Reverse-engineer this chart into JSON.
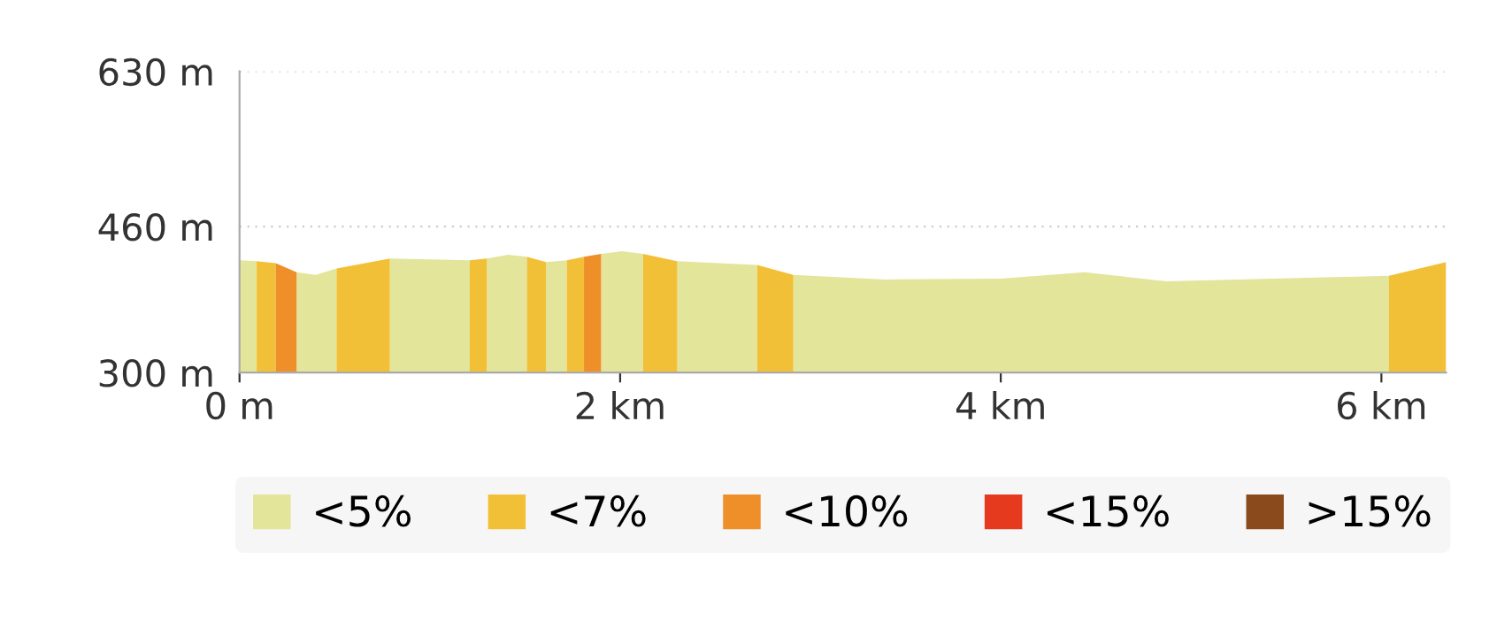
{
  "chart_data": {
    "type": "area",
    "xlim": [
      0,
      6.34
    ],
    "ylim": [
      300,
      630
    ],
    "xticks": [
      {
        "value": 0,
        "label": "0 m"
      },
      {
        "value": 2,
        "label": "2 km"
      },
      {
        "value": 4,
        "label": "4 km"
      },
      {
        "value": 6,
        "label": "6 km"
      }
    ],
    "yticks": [
      {
        "value": 300,
        "label": "300 m"
      },
      {
        "value": 460,
        "label": "460 m"
      },
      {
        "value": 630,
        "label": "630 m"
      }
    ],
    "grid": "y",
    "legend": "bottom",
    "series": [
      {
        "name": "<5%",
        "color": "#e3e59a",
        "x": [
          0,
          0.09,
          null,
          0.3,
          0.4,
          0.51,
          null,
          0.79,
          1.0,
          1.21,
          null,
          1.3,
          1.41,
          1.51,
          null,
          1.61,
          1.72,
          null,
          1.9,
          2.01,
          2.12,
          null,
          2.3,
          2.72,
          null,
          2.91,
          3.39,
          4.0,
          4.44,
          4.87,
          5.43,
          6.04
        ],
        "values": [
          423,
          422,
          null,
          410,
          407,
          414,
          null,
          425,
          424,
          423,
          null,
          425,
          429,
          427,
          null,
          421,
          423,
          null,
          430,
          433,
          430,
          null,
          422,
          418,
          null,
          407,
          402,
          403,
          410,
          400,
          403,
          406
        ]
      },
      {
        "name": "<7%",
        "color": "#f2c037",
        "x": [
          0.09,
          0.19,
          null,
          0.51,
          0.79,
          null,
          1.21,
          1.3,
          null,
          1.51,
          1.61,
          null,
          1.72,
          1.81,
          null,
          2.12,
          2.3,
          null,
          2.72,
          2.91,
          null,
          6.04,
          6.34
        ],
        "values": [
          422,
          420,
          null,
          414,
          425,
          null,
          423,
          425,
          null,
          427,
          421,
          null,
          423,
          427,
          null,
          430,
          422,
          null,
          418,
          407,
          null,
          406,
          421
        ]
      },
      {
        "name": "<10%",
        "color": "#ef8f2a",
        "x": [
          0.19,
          0.3,
          null,
          1.81,
          1.9
        ],
        "values": [
          420,
          410,
          null,
          427,
          430
        ]
      },
      {
        "name": "<15%",
        "color": "#e53a1e"
      },
      {
        "name": ">15%",
        "color": "#8a4a1c"
      }
    ]
  }
}
